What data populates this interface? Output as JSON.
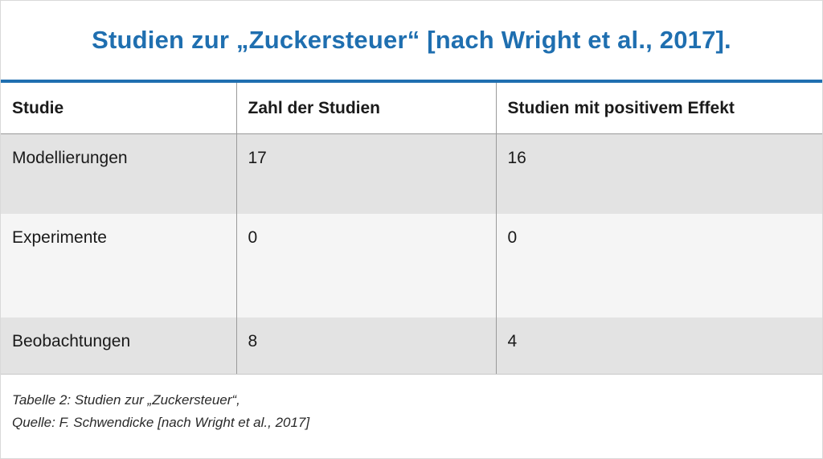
{
  "title": "Studien zur „Zuckersteuer“ [nach Wright et al., 2017].",
  "table": {
    "headers": [
      "Studie",
      "Zahl der Studien",
      "Studien mit positivem Effekt"
    ],
    "rows": [
      [
        "Modellierungen",
        "17",
        "16"
      ],
      [
        "Experimente",
        "0",
        "0"
      ],
      [
        "Beobachtungen",
        "8",
        "4"
      ]
    ]
  },
  "caption": {
    "line1": "Tabelle 2: Studien zur „Zuckersteuer“,",
    "line2": "Quelle: F. Schwendicke [nach Wright et al., 2017]"
  },
  "colors": {
    "accent": "#1f6fb0",
    "row_dark": "#e3e3e3",
    "row_light": "#f5f5f5"
  }
}
